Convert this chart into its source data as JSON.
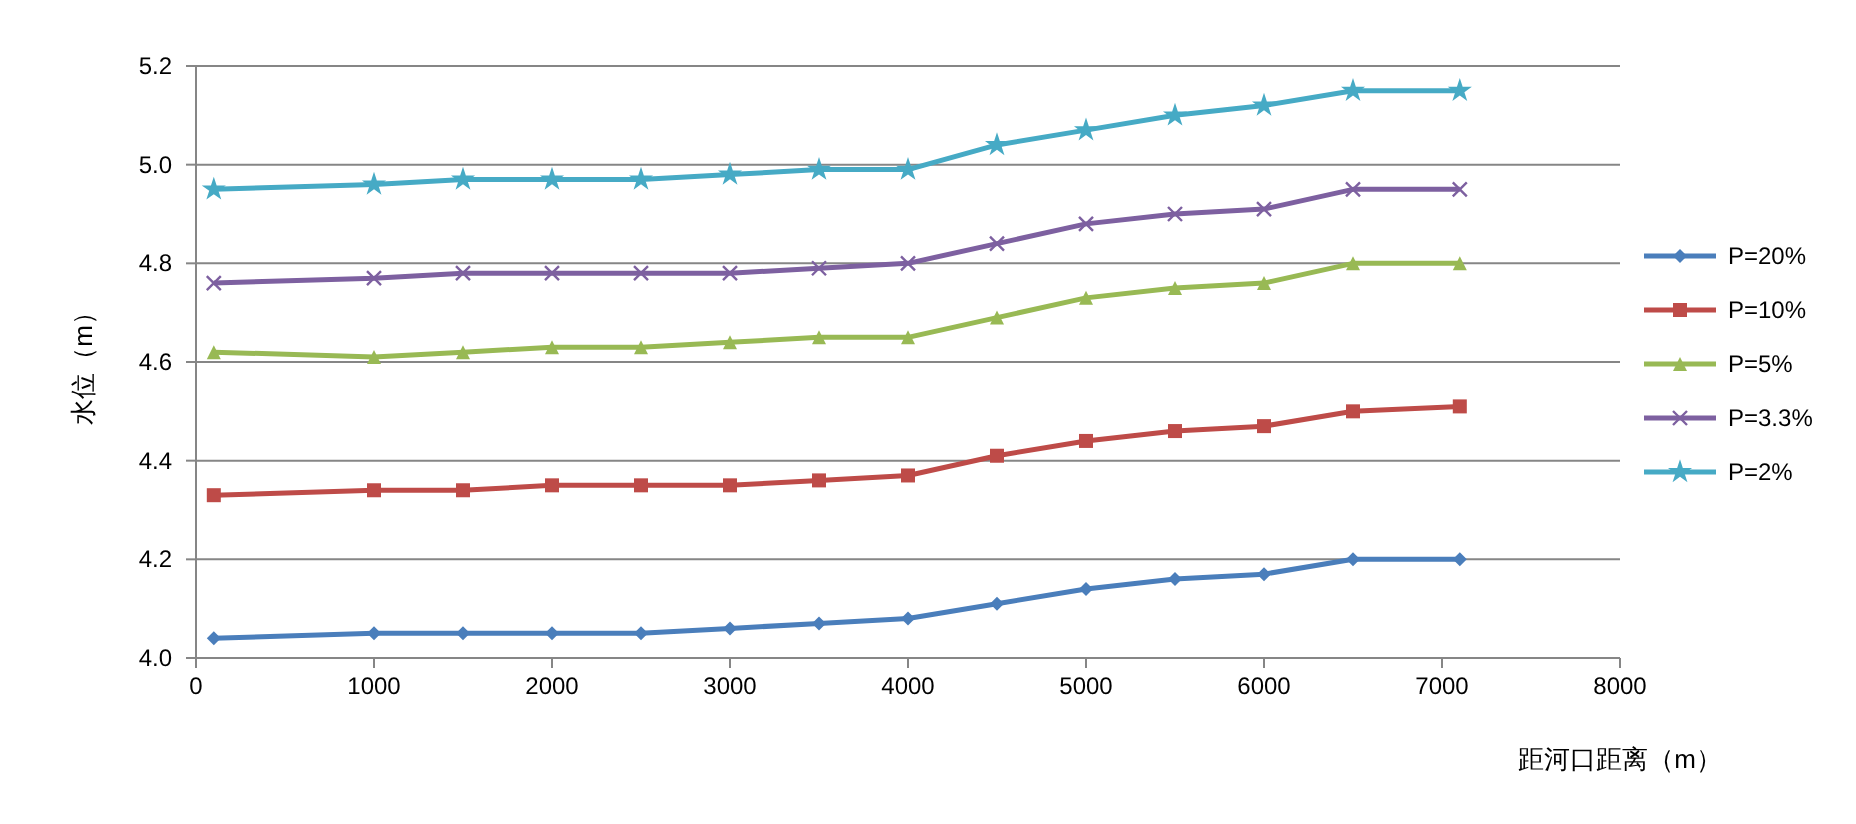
{
  "chart_data": {
    "type": "line",
    "xlabel": "距河口距离（m）",
    "ylabel": "水位（m）",
    "x": [
      100,
      1000,
      1500,
      2000,
      2500,
      3000,
      3500,
      4000,
      4500,
      5000,
      5500,
      6000,
      6500,
      7100
    ],
    "xlim": [
      0,
      8000
    ],
    "xticks": [
      0,
      1000,
      2000,
      3000,
      4000,
      5000,
      6000,
      7000,
      8000
    ],
    "ylim": [
      4.0,
      5.2
    ],
    "yticks": [
      {
        "value": 4.0,
        "label": "4.0"
      },
      {
        "value": 4.2,
        "label": "4.2"
      },
      {
        "value": 4.4,
        "label": "4.4"
      },
      {
        "value": 4.6,
        "label": "4.6"
      },
      {
        "value": 4.8,
        "label": "4.8"
      },
      {
        "value": 5.0,
        "label": "5.0"
      },
      {
        "value": 5.2,
        "label": "5.2"
      }
    ],
    "grid": "y",
    "legend": "right",
    "series": [
      {
        "name": "P=20%",
        "color": "#4a7ebb",
        "marker": "diamond",
        "values": [
          4.04,
          4.05,
          4.05,
          4.05,
          4.05,
          4.06,
          4.07,
          4.08,
          4.11,
          4.14,
          4.16,
          4.17,
          4.2,
          4.2
        ]
      },
      {
        "name": "P=10%",
        "color": "#be4b48",
        "marker": "square",
        "values": [
          4.33,
          4.34,
          4.34,
          4.35,
          4.35,
          4.35,
          4.36,
          4.37,
          4.41,
          4.44,
          4.46,
          4.47,
          4.5,
          4.51
        ]
      },
      {
        "name": "P=5%",
        "color": "#98b954",
        "marker": "triangle",
        "values": [
          4.62,
          4.61,
          4.62,
          4.63,
          4.63,
          4.64,
          4.65,
          4.65,
          4.69,
          4.73,
          4.75,
          4.76,
          4.8,
          4.8
        ]
      },
      {
        "name": "P=3.3%",
        "color": "#7d60a0",
        "marker": "cross",
        "values": [
          4.76,
          4.77,
          4.78,
          4.78,
          4.78,
          4.78,
          4.79,
          4.8,
          4.84,
          4.88,
          4.9,
          4.91,
          4.95,
          4.95
        ]
      },
      {
        "name": "P=2%",
        "color": "#46aac5",
        "marker": "star",
        "values": [
          4.95,
          4.96,
          4.97,
          4.97,
          4.97,
          4.98,
          4.99,
          4.99,
          5.04,
          5.07,
          5.1,
          5.12,
          5.15,
          5.15
        ]
      }
    ]
  }
}
